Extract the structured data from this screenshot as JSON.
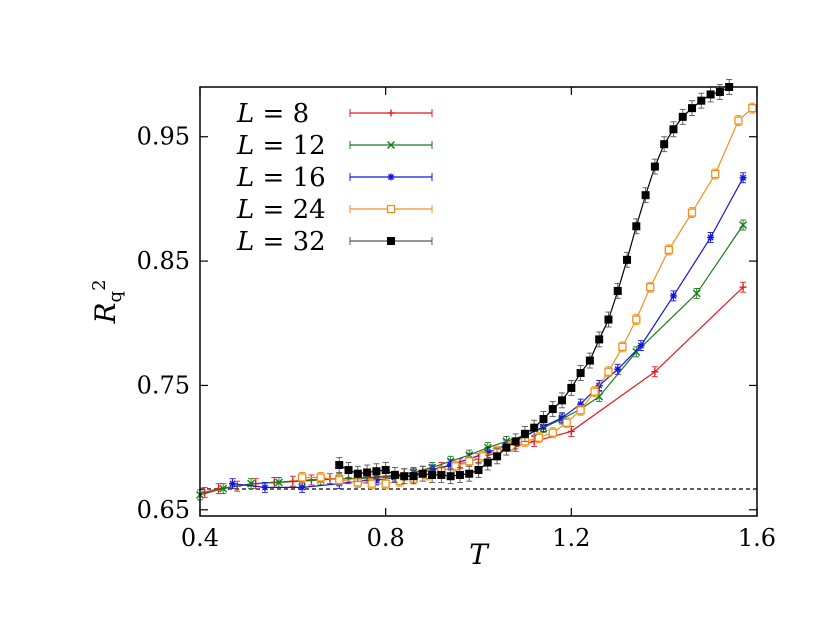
{
  "chart_data": {
    "type": "line",
    "xlabel": "T",
    "ylabel": "R_q^2",
    "xlim": [
      0.4,
      1.6
    ],
    "ylim": [
      0.645,
      0.99
    ],
    "xticks": [
      0.4,
      0.8,
      1.2,
      1.6
    ],
    "xtick_labels": [
      "0.4",
      "0.8",
      "1.2",
      "1.6"
    ],
    "yticks": [
      0.65,
      0.75,
      0.85,
      0.95
    ],
    "ytick_labels": [
      "0.65",
      "0.75",
      "0.85",
      "0.95"
    ],
    "legend_position": "top-left",
    "reference_line": {
      "y": 0.6667,
      "style": "dashed",
      "color": "#000000"
    },
    "series": [
      {
        "name": "L = 8",
        "L": "8",
        "color": "#e41a1c",
        "marker": "plus",
        "x": [
          0.41,
          0.44,
          0.48,
          0.52,
          0.56,
          0.6,
          0.64,
          0.68,
          0.72,
          0.76,
          0.8,
          0.84,
          0.88,
          0.92,
          0.96,
          1.0,
          1.04,
          1.08,
          1.12,
          1.2,
          1.38,
          1.57
        ],
        "y": [
          0.664,
          0.667,
          0.669,
          0.671,
          0.672,
          0.673,
          0.674,
          0.675,
          0.675,
          0.676,
          0.677,
          0.679,
          0.681,
          0.684,
          0.687,
          0.691,
          0.696,
          0.701,
          0.705,
          0.713,
          0.761,
          0.829
        ],
        "err": 0.004
      },
      {
        "name": "L = 12",
        "L": "12",
        "color": "#1a7a1a",
        "marker": "x",
        "x": [
          0.4,
          0.45,
          0.51,
          0.57,
          0.62,
          0.66,
          0.7,
          0.74,
          0.78,
          0.82,
          0.86,
          0.9,
          0.94,
          0.98,
          1.02,
          1.06,
          1.1,
          1.14,
          1.18,
          1.22,
          1.26,
          1.34,
          1.47,
          1.57
        ],
        "y": [
          0.662,
          0.667,
          0.671,
          0.672,
          0.673,
          0.674,
          0.675,
          0.675,
          0.676,
          0.677,
          0.68,
          0.684,
          0.689,
          0.694,
          0.7,
          0.705,
          0.71,
          0.716,
          0.723,
          0.731,
          0.741,
          0.777,
          0.824,
          0.879
        ],
        "err": 0.004
      },
      {
        "name": "L = 16",
        "L": "16",
        "color": "#1414e0",
        "marker": "star",
        "x": [
          0.47,
          0.54,
          0.62,
          0.7,
          0.74,
          0.78,
          0.82,
          0.86,
          0.9,
          0.94,
          0.98,
          1.02,
          1.06,
          1.1,
          1.14,
          1.18,
          1.22,
          1.26,
          1.3,
          1.35,
          1.42,
          1.5,
          1.57
        ],
        "y": [
          0.671,
          0.668,
          0.668,
          0.671,
          0.673,
          0.674,
          0.676,
          0.678,
          0.682,
          0.686,
          0.691,
          0.696,
          0.702,
          0.709,
          0.717,
          0.724,
          0.735,
          0.75,
          0.763,
          0.782,
          0.822,
          0.869,
          0.917
        ],
        "err": 0.004
      },
      {
        "name": "L = 24",
        "L": "24",
        "color": "#f0901a",
        "marker": "square-open",
        "x": [
          0.62,
          0.66,
          0.7,
          0.74,
          0.77,
          0.8,
          0.83,
          0.86,
          0.89,
          0.92,
          0.95,
          0.98,
          1.01,
          1.04,
          1.07,
          1.1,
          1.13,
          1.16,
          1.19,
          1.22,
          1.25,
          1.28,
          1.31,
          1.34,
          1.37,
          1.41,
          1.46,
          1.51,
          1.56,
          1.59
        ],
        "y": [
          0.676,
          0.676,
          0.674,
          0.672,
          0.671,
          0.671,
          0.673,
          0.675,
          0.678,
          0.681,
          0.685,
          0.689,
          0.693,
          0.697,
          0.701,
          0.705,
          0.708,
          0.712,
          0.72,
          0.73,
          0.745,
          0.761,
          0.781,
          0.803,
          0.829,
          0.859,
          0.889,
          0.92,
          0.963,
          0.973
        ],
        "err": 0.004
      },
      {
        "name": "L = 32",
        "L": "32",
        "color": "#000000",
        "marker": "square",
        "x": [
          0.7,
          0.72,
          0.74,
          0.76,
          0.78,
          0.8,
          0.82,
          0.84,
          0.86,
          0.88,
          0.9,
          0.92,
          0.94,
          0.96,
          0.98,
          1.0,
          1.02,
          1.04,
          1.06,
          1.08,
          1.1,
          1.12,
          1.14,
          1.16,
          1.18,
          1.2,
          1.22,
          1.24,
          1.26,
          1.28,
          1.3,
          1.32,
          1.34,
          1.36,
          1.38,
          1.4,
          1.42,
          1.44,
          1.46,
          1.48,
          1.5,
          1.52,
          1.54
        ],
        "y": [
          0.686,
          0.682,
          0.679,
          0.68,
          0.681,
          0.682,
          0.678,
          0.677,
          0.677,
          0.679,
          0.678,
          0.678,
          0.677,
          0.678,
          0.679,
          0.682,
          0.688,
          0.693,
          0.7,
          0.705,
          0.711,
          0.716,
          0.723,
          0.731,
          0.738,
          0.748,
          0.76,
          0.77,
          0.787,
          0.803,
          0.826,
          0.851,
          0.878,
          0.903,
          0.926,
          0.944,
          0.956,
          0.966,
          0.973,
          0.979,
          0.984,
          0.986,
          0.99
        ],
        "err": 0.006
      }
    ]
  }
}
